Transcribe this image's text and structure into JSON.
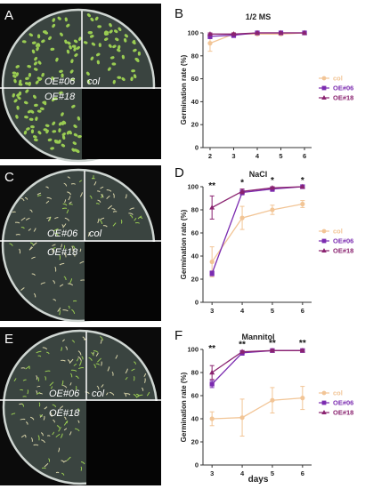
{
  "colors": {
    "col": "#f2c596",
    "OE06": "#7b2bb0",
    "OE18": "#8a2370",
    "seedling": "#9acd52",
    "seedling_pale": "#d8d3a8"
  },
  "photo_panels": [
    {
      "letter": "A",
      "labels": [
        "OE#06",
        "col",
        "OE#18"
      ],
      "seedling_style": "dense-green"
    },
    {
      "letter": "C",
      "labels": [
        "OE#06",
        "col",
        "OE#18"
      ],
      "seedling_style": "sparse-pale"
    },
    {
      "letter": "E",
      "labels": [
        "OE#06",
        "col",
        "OE#18"
      ],
      "seedling_style": "mixed"
    }
  ],
  "x_axis_title": "days",
  "chart_data": [
    {
      "letter": "B",
      "type": "line",
      "title": "1/2 MS",
      "ylabel": "Germination rate (%)",
      "xlabel": "",
      "x": [
        2,
        3,
        4,
        5,
        6
      ],
      "xlim": [
        1.7,
        6.3
      ],
      "ylim": [
        0,
        100
      ],
      "yticks": [
        0,
        20,
        40,
        60,
        80,
        100
      ],
      "legend": "right",
      "series": [
        {
          "name": "col",
          "key": "col",
          "marker": "circle",
          "values": [
            91,
            99,
            99,
            99,
            100
          ],
          "err": [
            7,
            2,
            1,
            1,
            0
          ]
        },
        {
          "name": "OE#06",
          "key": "OE06",
          "marker": "square",
          "values": [
            97,
            98,
            100,
            100,
            100
          ],
          "err": [
            2,
            2,
            0,
            0,
            0
          ]
        },
        {
          "name": "OE#18",
          "key": "OE18",
          "marker": "triangle",
          "values": [
            99,
            99,
            100,
            100,
            100
          ],
          "err": [
            1,
            1,
            0,
            0,
            0
          ]
        }
      ],
      "annotations": []
    },
    {
      "letter": "D",
      "type": "line",
      "title": "NaCl",
      "ylabel": "Germination rate (%)",
      "xlabel": "",
      "x": [
        3,
        4,
        5,
        6
      ],
      "xlim": [
        2.7,
        6.3
      ],
      "ylim": [
        0,
        100
      ],
      "yticks": [
        0,
        20,
        40,
        60,
        80,
        100
      ],
      "legend": "right",
      "series": [
        {
          "name": "col",
          "key": "col",
          "marker": "circle",
          "values": [
            35,
            73,
            80,
            85
          ],
          "err": [
            13,
            10,
            4,
            3
          ]
        },
        {
          "name": "OE#06",
          "key": "OE06",
          "marker": "square",
          "values": [
            25,
            95,
            98,
            100
          ],
          "err": [
            2,
            2,
            2,
            0
          ]
        },
        {
          "name": "OE#18",
          "key": "OE18",
          "marker": "triangle",
          "values": [
            82,
            96,
            99,
            100
          ],
          "err": [
            10,
            2,
            1,
            0
          ]
        }
      ],
      "annotations": [
        {
          "x": 3,
          "text": "**"
        },
        {
          "x": 4,
          "text": "*"
        },
        {
          "x": 5,
          "text": "*"
        },
        {
          "x": 6,
          "text": "*"
        }
      ]
    },
    {
      "letter": "F",
      "type": "line",
      "title": "Mannitol",
      "ylabel": "Germination rate (%)",
      "xlabel": "days",
      "x": [
        3,
        4,
        5,
        6
      ],
      "xlim": [
        2.7,
        6.3
      ],
      "ylim": [
        0,
        100
      ],
      "yticks": [
        0,
        20,
        40,
        60,
        80,
        100
      ],
      "legend": "right",
      "series": [
        {
          "name": "col",
          "key": "col",
          "marker": "circle",
          "values": [
            40,
            41,
            56,
            58
          ],
          "err": [
            6,
            16,
            11,
            10
          ]
        },
        {
          "name": "OE#06",
          "key": "OE06",
          "marker": "square",
          "values": [
            70,
            97,
            99,
            99
          ],
          "err": [
            3,
            2,
            1,
            1
          ]
        },
        {
          "name": "OE#18",
          "key": "OE18",
          "marker": "triangle",
          "values": [
            80,
            98,
            99,
            99
          ],
          "err": [
            6,
            1,
            1,
            1
          ]
        }
      ],
      "annotations": [
        {
          "x": 3,
          "text": "**"
        },
        {
          "x": 4,
          "text": "**"
        },
        {
          "x": 5,
          "text": "**"
        },
        {
          "x": 6,
          "text": "**"
        }
      ]
    }
  ]
}
